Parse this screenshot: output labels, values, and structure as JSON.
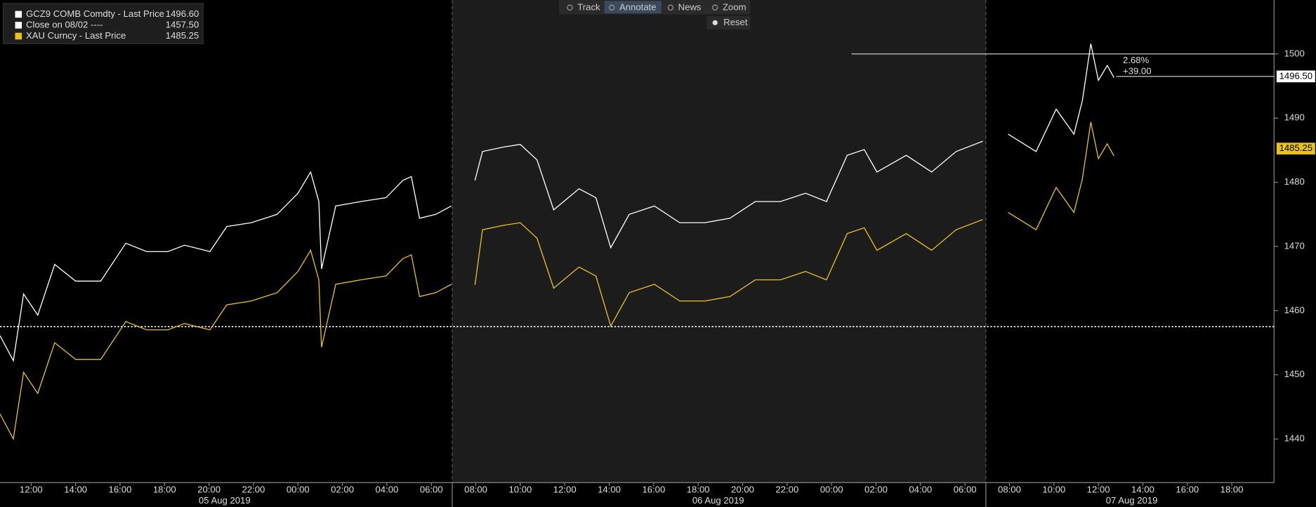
{
  "chart_data": {
    "type": "line",
    "x": [
      10.6,
      11.2,
      11.66,
      12.3,
      13.06,
      14.0,
      15.13,
      16.26,
      17.2,
      18.15,
      18.9,
      20.04,
      20.8,
      21.9,
      23.06,
      24.0,
      24.57,
      24.94,
      25.06,
      25.7,
      26.83,
      27.96,
      28.72,
      29.1,
      29.47,
      30.2,
      30.9,
      31.4,
      31.96,
      32.3,
      33.25,
      34.0,
      34.75,
      35.5,
      36.64,
      37.4,
      38.07,
      38.9,
      40.03,
      41.17,
      42.3,
      43.43,
      44.57,
      45.7,
      46.83,
      47.77,
      48.7,
      49.47,
      50.04,
      51.36,
      52.5,
      53.6,
      54.8,
      55.4,
      55.94,
      57.2,
      58.1,
      58.9,
      59.28,
      59.66,
      60.0,
      60.4,
      60.7
    ],
    "series": [
      {
        "name": "GCZ9 COMB Comdty - Last Price",
        "legend_value": "1496.60",
        "color": "#ffffff",
        "values": [
          1456.1,
          1452.2,
          1462.6,
          1459.3,
          1467.2,
          1464.6,
          1464.6,
          1470.5,
          1469.2,
          1469.2,
          1470.2,
          1469.2,
          1473.1,
          1473.7,
          1475.0,
          1478.3,
          1481.6,
          1477.0,
          1466.5,
          1476.3,
          1477.0,
          1477.6,
          1480.3,
          1480.9,
          1474.4,
          1475.0,
          1476.3,
          null,
          1480.3,
          1484.8,
          1485.5,
          1485.9,
          1483.5,
          1475.7,
          1479.0,
          1477.6,
          1469.8,
          1475.0,
          1476.3,
          1473.7,
          1473.7,
          1474.4,
          1477.0,
          1477.0,
          1478.3,
          1477.0,
          1484.2,
          1485.1,
          1481.6,
          1484.2,
          1481.6,
          1484.8,
          1486.4,
          null,
          1487.5,
          1484.8,
          1491.4,
          1487.5,
          1492.7,
          1501.6,
          1495.9,
          1498.2,
          1496.3
        ],
        "price_tag": {
          "value": 1496.5,
          "label": "1496.50"
        }
      },
      {
        "name": "XAU Curncy - Last Price",
        "legend_value": "1485.25",
        "color": "#e8c21a",
        "values": [
          1443.9,
          1440.0,
          1450.4,
          1447.1,
          1455.0,
          1452.4,
          1452.4,
          1458.3,
          1457.0,
          1457.0,
          1458.0,
          1457.0,
          1460.9,
          1461.5,
          1462.8,
          1466.1,
          1469.4,
          1464.8,
          1454.3,
          1464.1,
          1464.8,
          1465.4,
          1468.1,
          1468.7,
          1462.2,
          1462.8,
          1464.1,
          null,
          1464.0,
          1472.6,
          1473.3,
          1473.7,
          1471.3,
          1463.5,
          1466.8,
          1465.4,
          1457.6,
          1462.8,
          1464.1,
          1461.5,
          1461.5,
          1462.2,
          1464.8,
          1464.8,
          1466.1,
          1464.8,
          1472.0,
          1472.9,
          1469.4,
          1472.0,
          1469.4,
          1472.6,
          1474.2,
          null,
          1475.3,
          1472.6,
          1479.2,
          1475.3,
          1480.5,
          1489.4,
          1483.7,
          1486.0,
          1484.1
        ],
        "price_tag": {
          "value": 1485.25,
          "label": "1485.25"
        }
      }
    ],
    "reference_line": {
      "name": "Close on 08/02 ----",
      "value": 1457.5,
      "label": "1457.50",
      "color": "#ffffff"
    },
    "annotation": {
      "lines": [
        {
          "value": 1500,
          "x_start": 48.9
        },
        {
          "value": 1496.5,
          "x_start": 60.8
        }
      ],
      "texts": [
        "2.68%",
        "+39.00"
      ]
    },
    "session_bounds": [
      30.94,
      54.94
    ],
    "xlim": [
      10.6,
      67.9
    ],
    "ylim": [
      1433.2,
      1508.4
    ],
    "yticks": [
      1440,
      1450,
      1460,
      1470,
      1480,
      1490,
      1500
    ],
    "xticks": [
      {
        "value": 12,
        "label": "12:00"
      },
      {
        "value": 14,
        "label": "14:00"
      },
      {
        "value": 16,
        "label": "16:00"
      },
      {
        "value": 18,
        "label": "18:00"
      },
      {
        "value": 20,
        "label": "20:00"
      },
      {
        "value": 22,
        "label": "22:00"
      },
      {
        "value": 24,
        "label": "00:00"
      },
      {
        "value": 26,
        "label": "02:00"
      },
      {
        "value": 28,
        "label": "04:00"
      },
      {
        "value": 30,
        "label": "06:00"
      },
      {
        "value": 32,
        "label": "08:00"
      },
      {
        "value": 34,
        "label": "10:00"
      },
      {
        "value": 36,
        "label": "12:00"
      },
      {
        "value": 38,
        "label": "14:00"
      },
      {
        "value": 40,
        "label": "16:00"
      },
      {
        "value": 42,
        "label": "18:00"
      },
      {
        "value": 44,
        "label": "20:00"
      },
      {
        "value": 46,
        "label": "22:00"
      },
      {
        "value": 48,
        "label": "00:00"
      },
      {
        "value": 50,
        "label": "02:00"
      },
      {
        "value": 52,
        "label": "04:00"
      },
      {
        "value": 54,
        "label": "06:00"
      },
      {
        "value": 56,
        "label": "08:00"
      },
      {
        "value": 58,
        "label": "10:00"
      },
      {
        "value": 60,
        "label": "12:00"
      },
      {
        "value": 62,
        "label": "14:00"
      },
      {
        "value": 64,
        "label": "16:00"
      },
      {
        "value": 66,
        "label": "18:00"
      }
    ],
    "date_ticks": [
      {
        "value": 20.7,
        "label": "05 Aug 2019"
      },
      {
        "value": 42.9,
        "label": "06 Aug 2019"
      },
      {
        "value": 61.5,
        "label": "07 Aug 2019"
      }
    ]
  },
  "toolbar": {
    "buttons": [
      "Track",
      "Annotate",
      "News",
      "Zoom"
    ],
    "reset": "Reset"
  }
}
